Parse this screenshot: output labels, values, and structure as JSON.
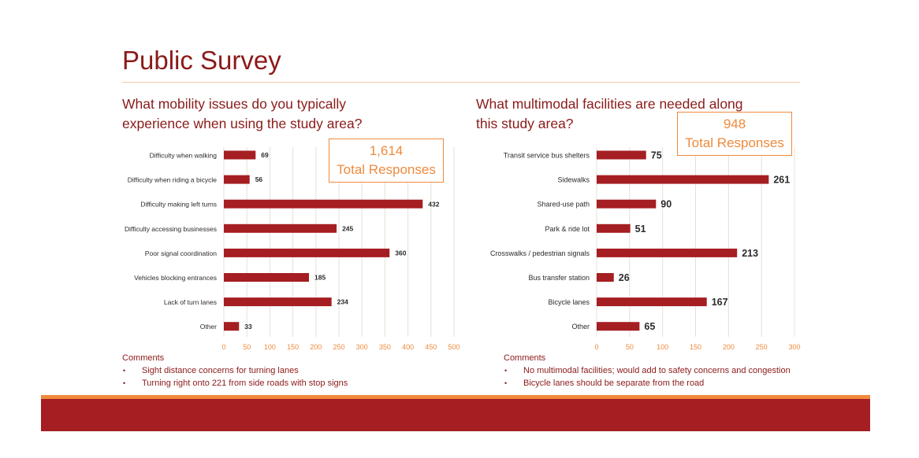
{
  "page": {
    "title": "Public Survey"
  },
  "colors": {
    "title": "#8b1a1a",
    "bar": "#a51e22",
    "accent": "#ef8a3c",
    "grid": "#e6e0d2",
    "footer": "#a51e22"
  },
  "left_panel": {
    "question": "What mobility issues do you typically\nexperience when using the study area?",
    "total_value": "1,614",
    "total_label": "Total Responses",
    "comments_heading": "Comments",
    "comments": [
      "Sight distance concerns for turning lanes",
      "Turning right onto 221 from side roads with stop signs"
    ]
  },
  "right_panel": {
    "question": "What multimodal facilities are needed along\nthis study area?",
    "total_value": "948",
    "total_label": "Total Responses",
    "comments_heading": "Comments",
    "comments": [
      "No multimodal facilities; would add to safety concerns and congestion",
      "Bicycle lanes should be separate from the road"
    ]
  },
  "chart_data": [
    {
      "type": "bar",
      "orientation": "horizontal",
      "title": "What mobility issues do you typically experience when using the study area?",
      "categories": [
        "Difficulty when walking",
        "Difficulty when riding a bicycle",
        "Difficulty making left turns",
        "Difficulty accessing businesses",
        "Poor signal coordination",
        "Vehicles blocking entrances",
        "Lack of turn lanes",
        "Other"
      ],
      "values": [
        69,
        56,
        432,
        245,
        360,
        185,
        234,
        33
      ],
      "xlim": [
        0,
        500
      ],
      "xticks": [
        0,
        50,
        100,
        150,
        200,
        250,
        300,
        350,
        400,
        450,
        500
      ],
      "grid": true,
      "data_labels": true
    },
    {
      "type": "bar",
      "orientation": "horizontal",
      "title": "What multimodal facilities are needed along this study area?",
      "categories": [
        "Transit service bus shelters",
        "Sidewalks",
        "Shared-use path",
        "Park & ride lot",
        "Crosswalks / pedestrian signals",
        "Bus transfer station",
        "Bicycle lanes",
        "Other"
      ],
      "values": [
        75,
        261,
        90,
        51,
        213,
        26,
        167,
        65
      ],
      "xlim": [
        0,
        300
      ],
      "xticks": [
        0,
        50,
        100,
        150,
        200,
        250,
        300
      ],
      "grid": true,
      "data_labels": true
    }
  ]
}
